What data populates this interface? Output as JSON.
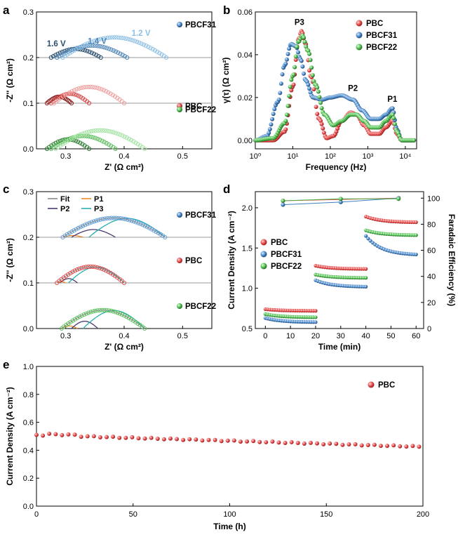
{
  "chart_data": [
    {
      "panel": "a",
      "type": "scatter",
      "title": "",
      "xlabel": "Z' (Ω cm²)",
      "ylabel": "-Z'' (Ω cm²)",
      "xlim": [
        0.25,
        0.55
      ],
      "ylim": [
        0.0,
        0.3
      ],
      "xticks": [
        "0.3",
        "0.4",
        "0.5"
      ],
      "yticks": [
        "0.0",
        "0.1",
        "0.2",
        "0.3"
      ],
      "offset_lines": [
        0.1,
        0.2
      ],
      "legend": [
        "PBCF31",
        "PBC",
        "PBCF22"
      ],
      "annotations": [
        "1.6 V",
        "1.4 V",
        "1.2 V"
      ],
      "series": [
        {
          "name": "PBCF31 1.6 V",
          "color": "#2b4f6e",
          "baseline": 0.2,
          "x_start": 0.275,
          "x_end": 0.36,
          "peak": 0.02
        },
        {
          "name": "PBCF31 1.4 V",
          "color": "#4f86b8",
          "baseline": 0.2,
          "x_start": 0.285,
          "x_end": 0.405,
          "peak": 0.028
        },
        {
          "name": "PBCF31 1.2 V",
          "color": "#8fc0e4",
          "baseline": 0.2,
          "x_start": 0.295,
          "x_end": 0.472,
          "peak": 0.047
        },
        {
          "name": "PBC 1.6 V",
          "color": "#8b1e1e",
          "baseline": 0.1,
          "x_start": 0.268,
          "x_end": 0.31,
          "peak": 0.015
        },
        {
          "name": "PBC 1.4 V",
          "color": "#d94a4a",
          "baseline": 0.1,
          "x_start": 0.275,
          "x_end": 0.34,
          "peak": 0.022
        },
        {
          "name": "PBC 1.2 V",
          "color": "#f0a0a0",
          "baseline": 0.1,
          "x_start": 0.28,
          "x_end": 0.4,
          "peak": 0.038
        },
        {
          "name": "PBCF22 1.6 V",
          "color": "#2e7d32",
          "baseline": 0.0,
          "x_start": 0.268,
          "x_end": 0.34,
          "peak": 0.022
        },
        {
          "name": "PBCF22 1.4 V",
          "color": "#5fbf5f",
          "baseline": 0.0,
          "x_start": 0.275,
          "x_end": 0.385,
          "peak": 0.03
        },
        {
          "name": "PBCF22 1.2 V",
          "color": "#a6e3a6",
          "baseline": 0.0,
          "x_start": 0.283,
          "x_end": 0.435,
          "peak": 0.043
        }
      ]
    },
    {
      "panel": "b",
      "type": "line",
      "title": "",
      "xlabel": "Frequency (Hz)",
      "ylabel": "γ(τ) (Ω cm²)",
      "xscale": "log",
      "xlim": [
        1,
        20000
      ],
      "ylim": [
        -0.004,
        0.06
      ],
      "xticks": [
        "10⁰",
        "10¹",
        "10²",
        "10³",
        "10⁴"
      ],
      "yticks": [
        "0.00",
        "0.02",
        "0.04",
        "0.06"
      ],
      "legend": [
        "PBC",
        "PBCF31",
        "PBCF22"
      ],
      "annotations": [
        "P3",
        "P2",
        "P1"
      ],
      "series": [
        {
          "name": "PBC",
          "color": "#e04040",
          "x": [
            1,
            3,
            6,
            10,
            14,
            17,
            22,
            30,
            50,
            80,
            120,
            200,
            350,
            500,
            800,
            1200,
            2000,
            3000,
            4500,
            6000,
            8000,
            20000
          ],
          "y": [
            0.0,
            0.0,
            0.004,
            0.025,
            0.047,
            0.051,
            0.045,
            0.03,
            0.01,
            0.001,
            0.002,
            0.009,
            0.013,
            0.012,
            0.007,
            0.003,
            0.003,
            0.006,
            0.009,
            0.003,
            0.0,
            0.0
          ]
        },
        {
          "name": "PBCF31",
          "color": "#3f7fc1",
          "x": [
            1,
            2,
            4,
            6,
            9,
            12,
            16,
            22,
            35,
            60,
            100,
            200,
            400,
            700,
            1200,
            2000,
            3000,
            4500,
            6000,
            8000,
            20000
          ],
          "y": [
            0.0,
            0.002,
            0.018,
            0.035,
            0.045,
            0.044,
            0.038,
            0.028,
            0.02,
            0.019,
            0.02,
            0.021,
            0.019,
            0.014,
            0.01,
            0.01,
            0.012,
            0.015,
            0.005,
            0.0,
            0.0
          ]
        },
        {
          "name": "PBCF22",
          "color": "#48b548",
          "x": [
            1,
            3,
            6,
            10,
            14,
            18,
            25,
            40,
            70,
            120,
            200,
            350,
            500,
            800,
            1200,
            2000,
            3000,
            4500,
            6000,
            8000,
            20000
          ],
          "y": [
            0.0,
            0.001,
            0.008,
            0.03,
            0.046,
            0.049,
            0.042,
            0.026,
            0.012,
            0.007,
            0.009,
            0.012,
            0.012,
            0.009,
            0.006,
            0.006,
            0.009,
            0.012,
            0.004,
            0.0,
            0.0
          ]
        }
      ]
    },
    {
      "panel": "c",
      "type": "scatter",
      "title": "",
      "xlabel": "Z' (Ω cm²)",
      "ylabel": "-Z'' (Ω cm²)",
      "xlim": [
        0.25,
        0.55
      ],
      "ylim": [
        0.0,
        0.3
      ],
      "xticks": [
        "0.3",
        "0.4",
        "0.5"
      ],
      "yticks": [
        "0.0",
        "0.1",
        "0.2",
        "0.3"
      ],
      "offset_lines": [
        0.1,
        0.2
      ],
      "legend": [
        "PBCF31",
        "PBC",
        "PBCF22"
      ],
      "fit_legend": [
        "Fit",
        "P1",
        "P2",
        "P3"
      ],
      "fit_colors": {
        "Fit": "#888888",
        "P1": "#f08a24",
        "P2": "#4a3a70",
        "P3": "#2ab0b0"
      },
      "series": [
        {
          "name": "PBCF31",
          "color": "#5a9ad8",
          "baseline": 0.2,
          "x_start": 0.295,
          "x_end": 0.47,
          "peak": 0.045,
          "p1": [
            0.295,
            0.33,
            0.004
          ],
          "p2": [
            0.31,
            0.385,
            0.018
          ],
          "p3": [
            0.34,
            0.47,
            0.044
          ]
        },
        {
          "name": "PBC",
          "color": "#e04545",
          "baseline": 0.1,
          "x_start": 0.285,
          "x_end": 0.4,
          "peak": 0.038,
          "p1": [
            0.285,
            0.3,
            0.003
          ],
          "p2": [
            0.29,
            0.32,
            0.01
          ],
          "p3": [
            0.305,
            0.4,
            0.037
          ]
        },
        {
          "name": "PBCF22",
          "color": "#55c055",
          "baseline": 0.0,
          "x_start": 0.293,
          "x_end": 0.435,
          "peak": 0.043,
          "p1": [
            0.293,
            0.32,
            0.006
          ],
          "p2": [
            0.31,
            0.355,
            0.017
          ],
          "p3": [
            0.33,
            0.435,
            0.042
          ]
        }
      ]
    },
    {
      "panel": "d",
      "type": "scatter",
      "title": "",
      "xlabel": "Time (min)",
      "ylabel": "Current Density (A cm⁻²)",
      "y2label": "Faradaic Efficiency (%)",
      "xlim": [
        -4,
        63
      ],
      "ylim": [
        0.5,
        2.2
      ],
      "y2lim": [
        0,
        105
      ],
      "xticks": [
        "0",
        "10",
        "20",
        "30",
        "40",
        "50",
        "60"
      ],
      "yticks": [
        "0.5",
        "1.0",
        "1.5",
        "2.0"
      ],
      "y2ticks": [
        "0",
        "20",
        "40",
        "60",
        "80",
        "100"
      ],
      "legend": [
        "PBC",
        "PBCF31",
        "PBCF22"
      ],
      "series": [
        {
          "name": "PBC",
          "color": "#e04040",
          "current": [
            [
              0,
              0.74,
              20,
              0.72
            ],
            [
              20,
              1.28,
              40,
              1.24
            ],
            [
              40,
              1.89,
              60,
              1.82
            ]
          ],
          "fe_x": [
            7,
            53
          ],
          "fe_y": [
            98,
            100
          ]
        },
        {
          "name": "PBCF31",
          "color": "#3f7fc1",
          "current": [
            [
              0,
              0.63,
              20,
              0.58
            ],
            [
              20,
              1.1,
              40,
              1.02
            ],
            [
              40,
              1.65,
              60,
              1.42
            ]
          ],
          "fe_x": [
            7,
            30,
            53
          ],
          "fe_y": [
            95,
            97,
            100
          ]
        },
        {
          "name": "PBCF22",
          "color": "#48b548",
          "current": [
            [
              0,
              0.68,
              20,
              0.64
            ],
            [
              20,
              1.17,
              40,
              1.13
            ],
            [
              40,
              1.72,
              60,
              1.66
            ]
          ],
          "fe_x": [
            7,
            30,
            53
          ],
          "fe_y": [
            98,
            99.5,
            99.5
          ]
        }
      ]
    },
    {
      "panel": "e",
      "type": "scatter",
      "title": "",
      "xlabel": "Time (h)",
      "ylabel": "Current Density (A cm⁻²)",
      "xlim": [
        0,
        200
      ],
      "ylim": [
        0.0,
        1.0
      ],
      "xticks": [
        "0",
        "50",
        "100",
        "150",
        "200"
      ],
      "yticks": [
        "0.0",
        "0.2",
        "0.4",
        "0.6",
        "0.8",
        "1.0"
      ],
      "legend": [
        "PBC"
      ],
      "series": [
        {
          "name": "PBC",
          "color": "#e04040",
          "x_start": 0,
          "x_end": 200,
          "step": 3.3,
          "y_start": 0.51,
          "y_end": 0.425
        }
      ]
    }
  ]
}
